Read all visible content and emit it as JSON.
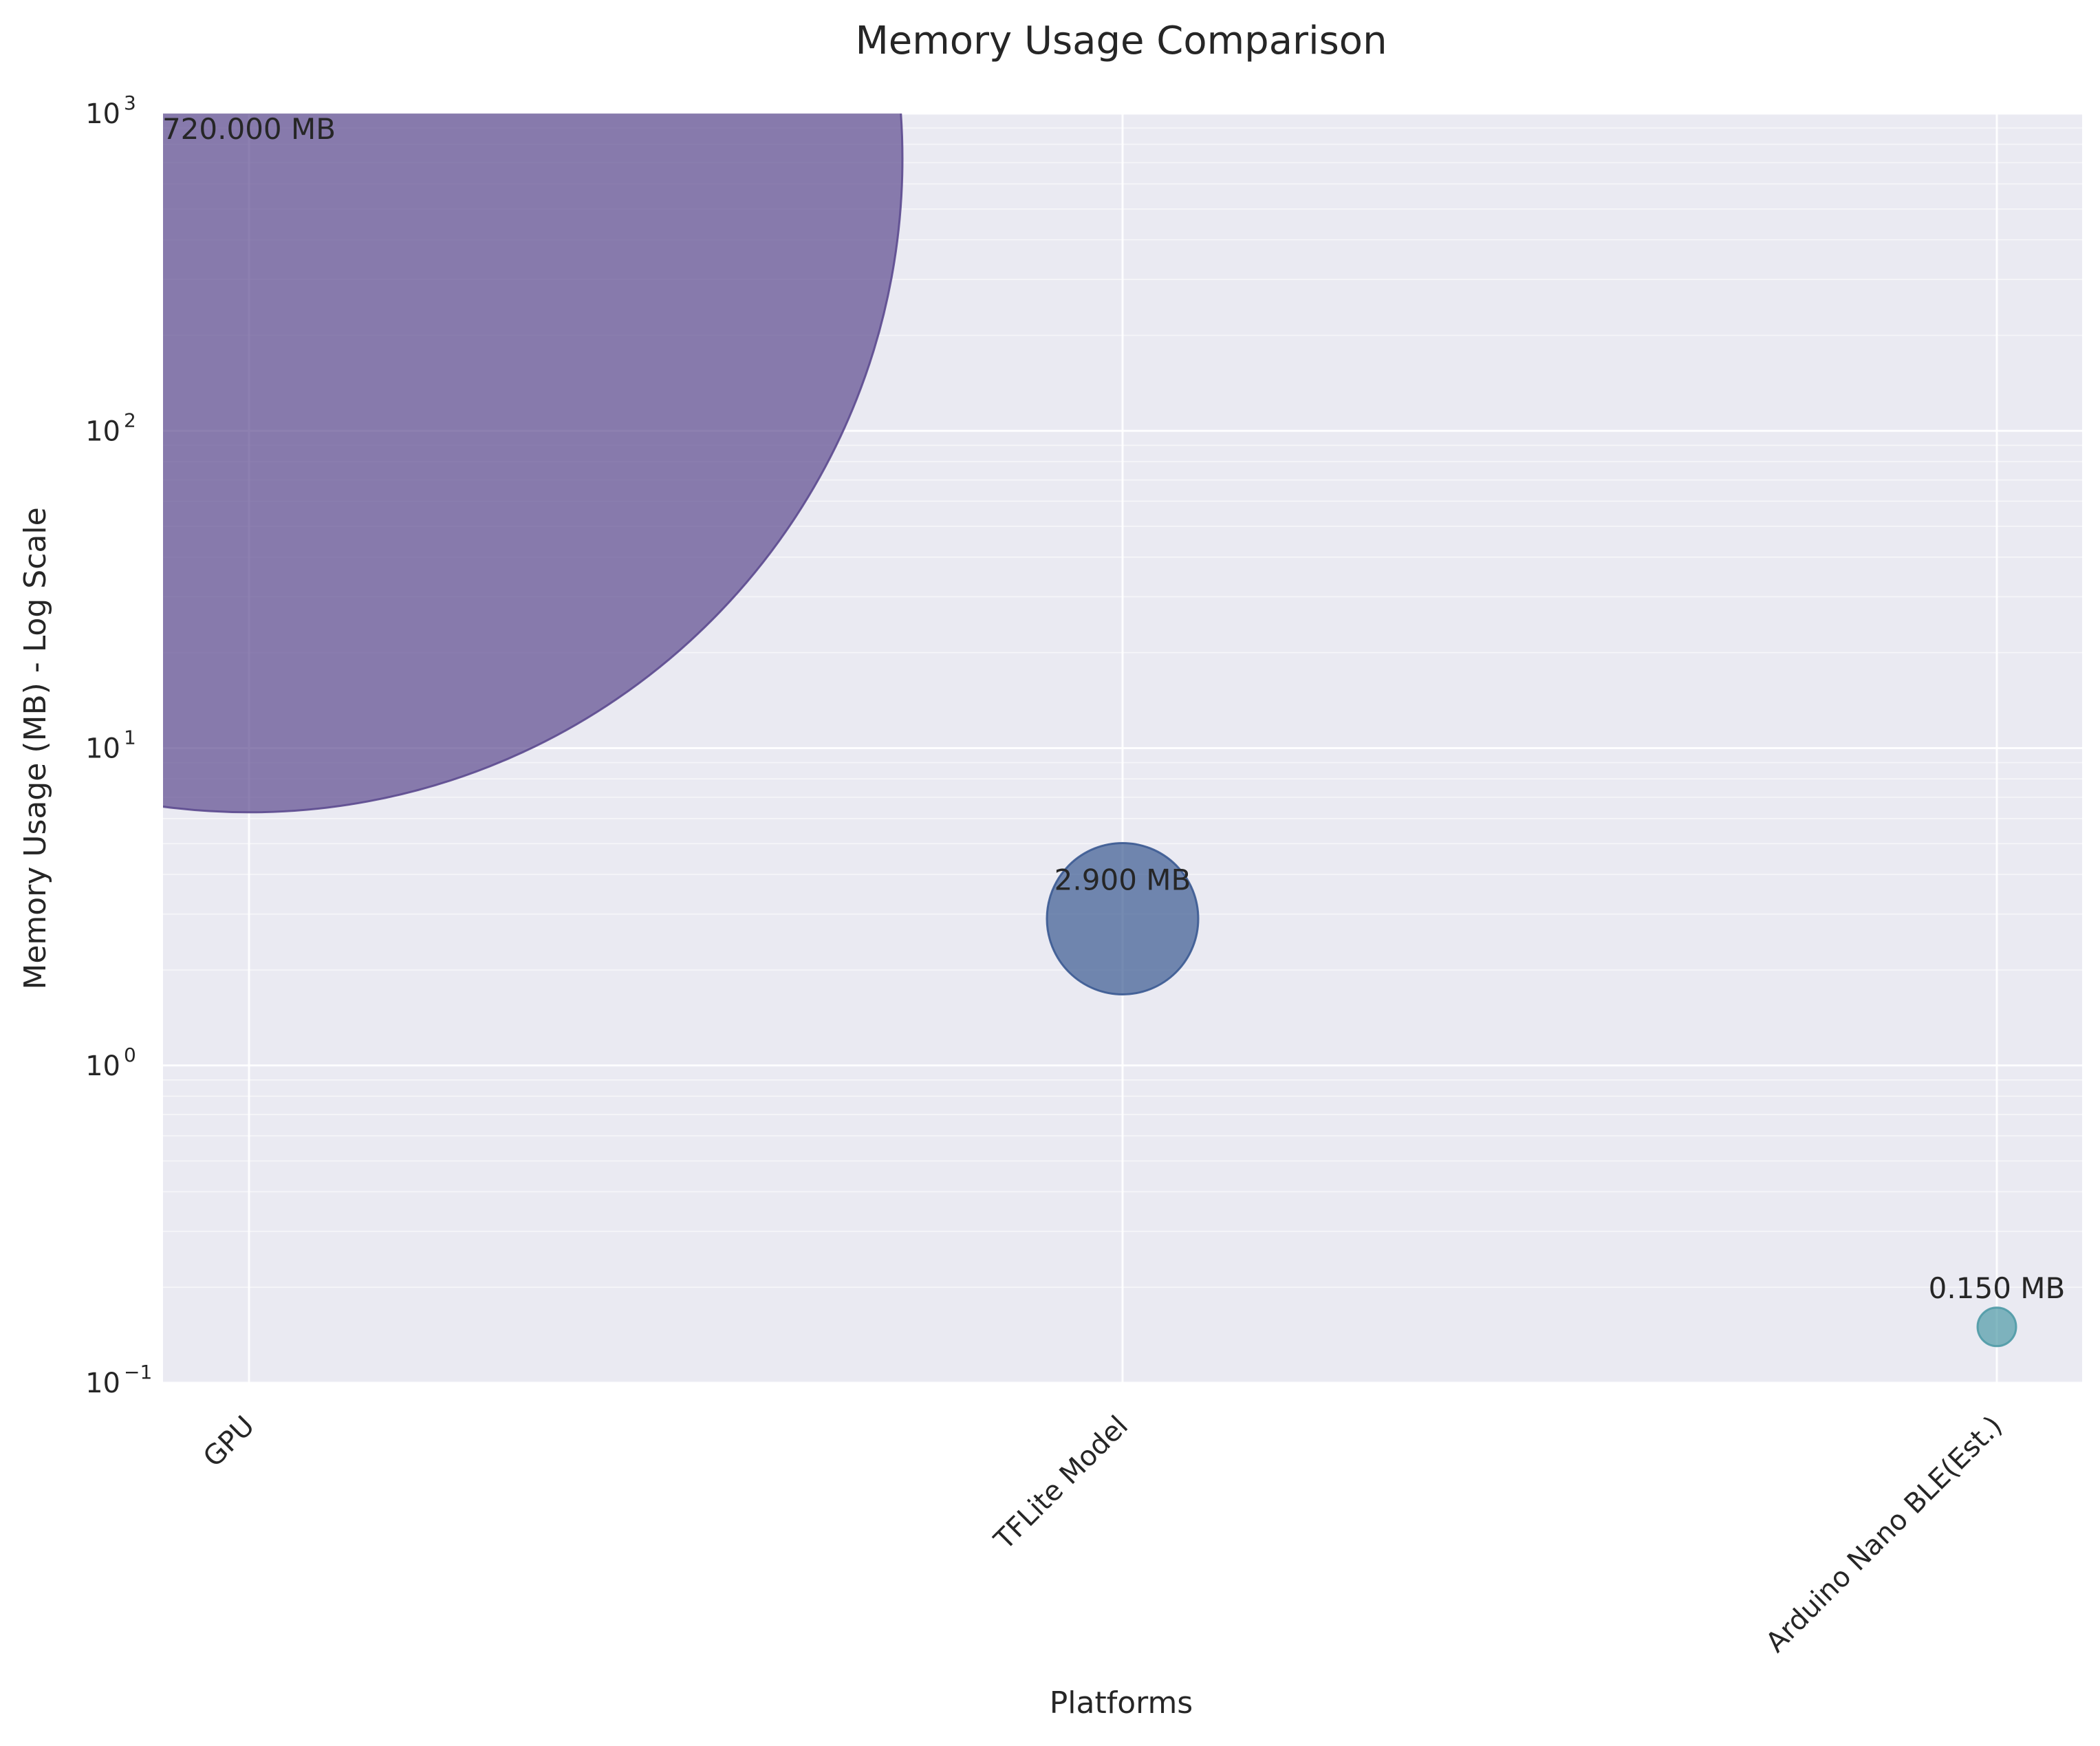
{
  "chart_data": {
    "type": "scatter",
    "title": "Memory Usage Comparison",
    "xlabel": "Platforms",
    "ylabel": "Memory Usage (MB) - Log Scale",
    "yscale": "log",
    "ylim": [
      0.1,
      1000
    ],
    "categories": [
      "GPU",
      "TFLite Model",
      "Arduino Nano BLE(Est.)"
    ],
    "values": [
      720.0,
      2.9,
      0.15
    ],
    "point_labels": [
      "720.000 MB",
      "2.900 MB",
      "0.150 MB"
    ],
    "y_ticks": [
      {
        "base": "10",
        "exp": "−1"
      },
      {
        "base": "10",
        "exp": "0"
      },
      {
        "base": "10",
        "exp": "1"
      },
      {
        "base": "10",
        "exp": "2"
      },
      {
        "base": "10",
        "exp": "3"
      }
    ],
    "colors": [
      "#5c4a8f",
      "#3b5a92",
      "#4f9aa6"
    ],
    "background": "#eaeaf2",
    "grid": true,
    "legend": false
  }
}
